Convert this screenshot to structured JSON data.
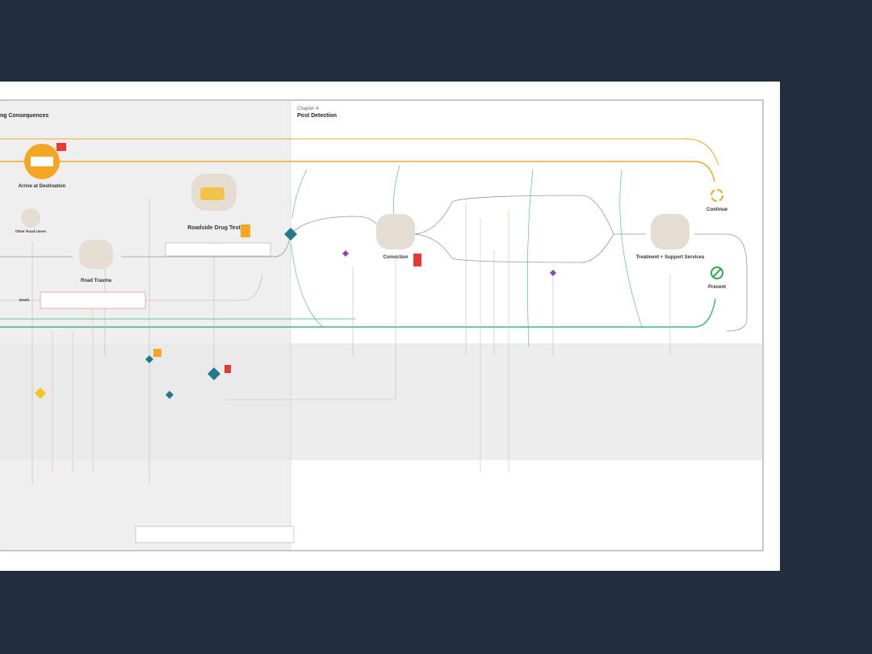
{
  "header": {
    "left_chapter_title": "ng Consequences",
    "chapter_label": "Chapter 4",
    "chapter_title": "Post Detection"
  },
  "nodes": [
    {
      "label": "Arrive at Destination"
    },
    {
      "label": "Other Road Users"
    },
    {
      "label": "Road Trauma"
    },
    {
      "label": "Death"
    },
    {
      "label": "Roadside Drug Test"
    },
    {
      "label": "Conviction"
    },
    {
      "label": "Treatment + Support Services"
    },
    {
      "label": "Continue"
    },
    {
      "label": "Prevent"
    }
  ]
}
